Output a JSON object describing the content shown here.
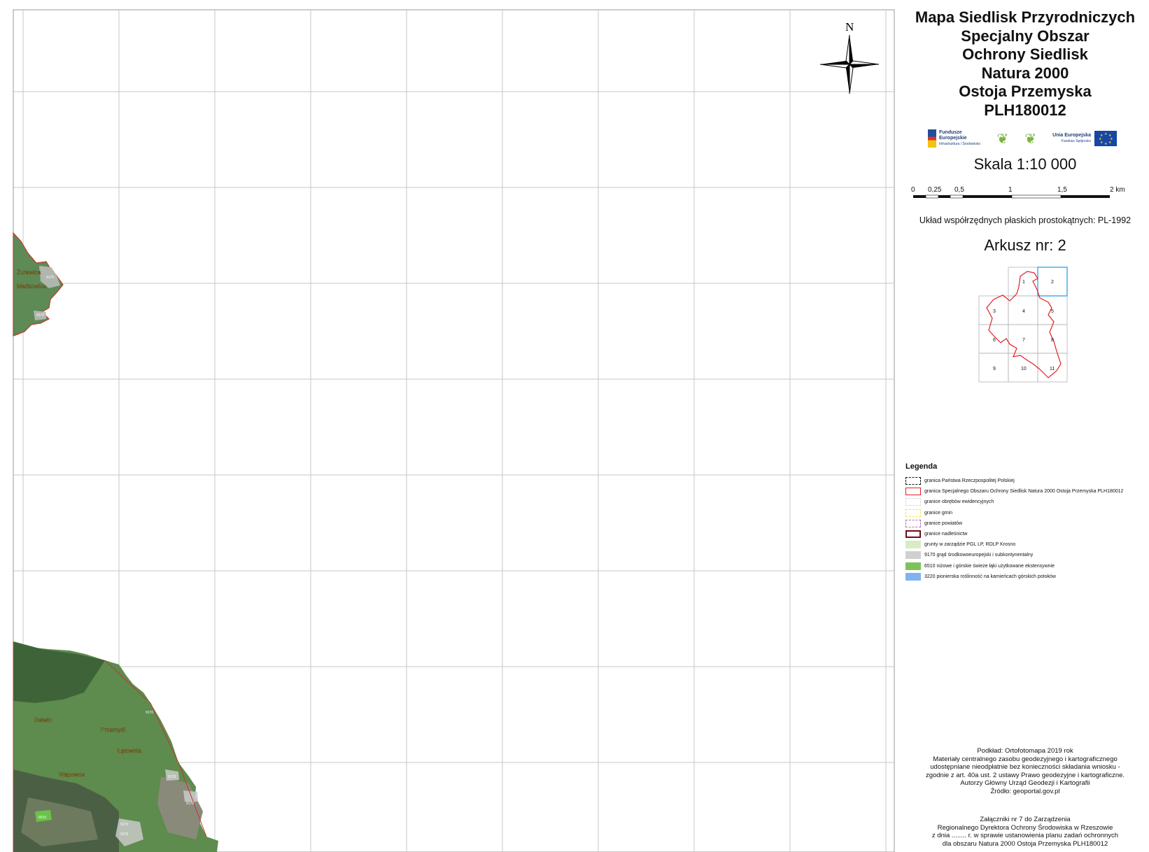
{
  "title": {
    "lines": [
      "Mapa Siedlisk Przyrodniczych",
      "Specjalny Obszar",
      "Ochrony Siedlisk",
      "Natura 2000",
      "Ostoja Przemyska",
      "PLH180012"
    ]
  },
  "logos": {
    "fe_line1": "Fundusze",
    "fe_line2": "Europejskie",
    "fe_line3": "Infrastruktura i Środowisko",
    "ue_line1": "Unia Europejska",
    "ue_line2": "Fundusz Spójności"
  },
  "scale": {
    "label": "Skala  1:10 000",
    "ticks": [
      "0",
      "0,25",
      "0,5",
      "1",
      "1,5",
      "2 km"
    ]
  },
  "coordinate_system": "Układ współrzędnych płaskich prostokątnych: PL-1992",
  "sheet": {
    "label": "Arkusz nr: 2",
    "index_numbers": [
      "1",
      "2",
      "3",
      "4",
      "5",
      "6",
      "7",
      "8",
      "9",
      "10",
      "11"
    ],
    "highlighted": "2"
  },
  "compass": {
    "north_label": "N"
  },
  "map": {
    "place_labels": [
      "Żurawica",
      "Maćkowice",
      "Bełwin",
      "Przemyśl",
      "Łętownia",
      "Wapowce"
    ],
    "patch_labels": [
      "9170",
      "9170",
      "9170",
      "9170",
      "9170",
      "9170",
      "9170",
      "6510"
    ]
  },
  "legend": {
    "title": "Legenda",
    "items": [
      {
        "label": "granica Państwa Rzeczpospolitej Polskiej",
        "style": "dashed-black"
      },
      {
        "label": "granica Specjalnego Obszaru Ochrony Siedlisk Natura 2000 Ostoja Przemyska PLH180012",
        "style": "solid-red"
      },
      {
        "label": "granice obrębów ewidencyjnych",
        "style": "dotted-grey"
      },
      {
        "label": "granice gmin",
        "style": "dashed-yellow"
      },
      {
        "label": "granice powiatów",
        "style": "dashed-purple"
      },
      {
        "label": "granice nadleśnictw",
        "style": "solid-darkred"
      },
      {
        "label": "grunty w zarządzie PGL LP, RDLP Krosno",
        "style": "fill",
        "color": "#d8ecc4"
      },
      {
        "label": "9170 grąd środkowoeuropejski i subkontynentalny",
        "style": "fill",
        "color": "#d0d0d0"
      },
      {
        "label": "6510 niżowe i górskie świeże łąki użytkowane ekstensywnie",
        "style": "fill",
        "color": "#7cc45a"
      },
      {
        "label": "3220 pionierska roślinność na kamieńcach górskich potoków",
        "style": "fill",
        "color": "#7fb3ef"
      }
    ]
  },
  "credits": [
    "Podkład: Ortofotomapa 2019 rok",
    "Materiały centralnego zasobu geodezyjnego i kartograficznego",
    "udostępniane nieodpłatnie bez konieczności składania wniosku -",
    "zgodnie z art. 40a ust. 2 ustawy Prawo geodezyjne i kartograficzne.",
    "Autorzy Główny Urząd Geodezji i Kartografii",
    "Źródło: geoportal.gov.pl"
  ],
  "annex": [
    "Załączniki nr 7 do Zarządzenia",
    "Regionalnego Dyrektora Ochrony Środowiska w Rzeszowie",
    "z dnia ........ r. w sprawie ustanowienia planu zadań ochronnych",
    "dla obszaru Natura 2000 Ostoja Przemyska PLH180012"
  ]
}
